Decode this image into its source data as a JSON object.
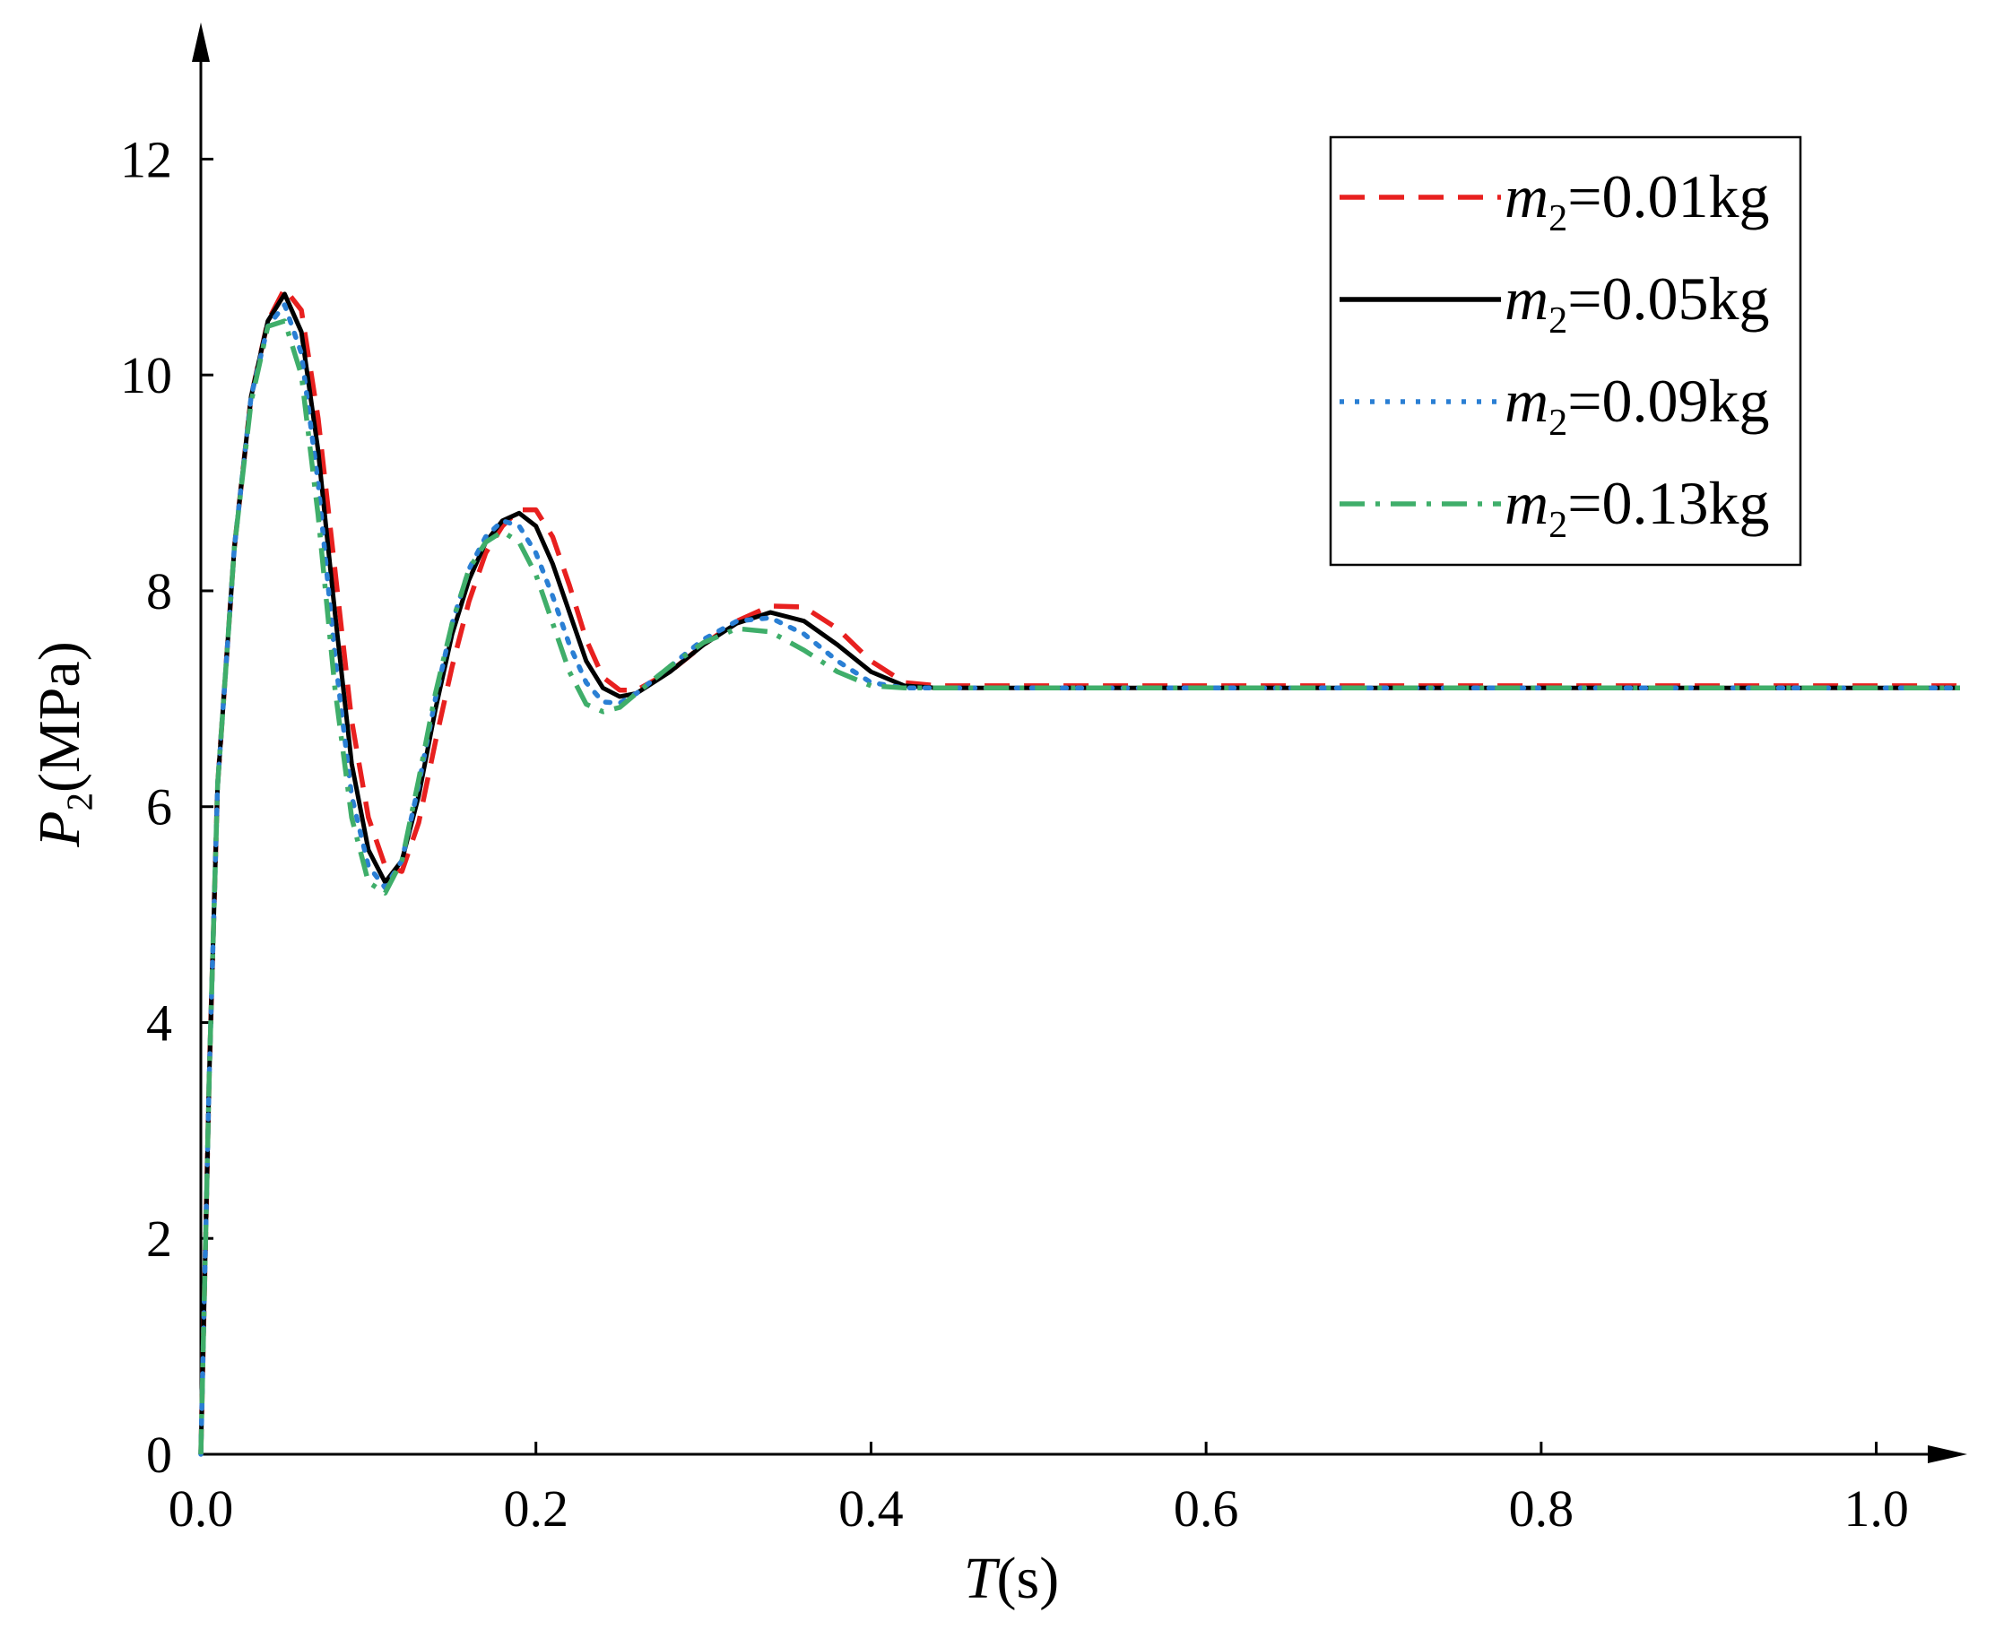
{
  "chart_data": {
    "type": "line",
    "x_label": "T(s)",
    "y_label": "P2(MPa)",
    "x": [
      0,
      0.005,
      0.01,
      0.02,
      0.03,
      0.04,
      0.05,
      0.06,
      0.07,
      0.08,
      0.09,
      0.1,
      0.11,
      0.12,
      0.13,
      0.14,
      0.15,
      0.16,
      0.17,
      0.18,
      0.19,
      0.2,
      0.21,
      0.22,
      0.23,
      0.24,
      0.25,
      0.26,
      0.28,
      0.3,
      0.32,
      0.34,
      0.36,
      0.38,
      0.4,
      0.42,
      0.44,
      0.5,
      0.6,
      0.8,
      1.05
    ],
    "series": [
      {
        "name": "m2=0.01kg",
        "color": "#e8201f",
        "dash": "dashed",
        "values": [
          0,
          3.5,
          6.2,
          8.4,
          9.8,
          10.5,
          10.8,
          10.6,
          9.6,
          8.2,
          6.8,
          5.9,
          5.45,
          5.4,
          5.85,
          6.6,
          7.3,
          7.9,
          8.35,
          8.6,
          8.75,
          8.75,
          8.5,
          8.05,
          7.55,
          7.2,
          7.08,
          7.08,
          7.25,
          7.5,
          7.72,
          7.86,
          7.85,
          7.65,
          7.35,
          7.15,
          7.12,
          7.12,
          7.12,
          7.12,
          7.12
        ]
      },
      {
        "name": "m2=0.05kg",
        "color": "#000000",
        "dash": "solid",
        "values": [
          0,
          3.5,
          6.2,
          8.4,
          9.8,
          10.5,
          10.75,
          10.4,
          9.3,
          7.8,
          6.4,
          5.6,
          5.3,
          5.5,
          6.1,
          6.9,
          7.6,
          8.1,
          8.45,
          8.65,
          8.72,
          8.6,
          8.25,
          7.8,
          7.35,
          7.1,
          7.02,
          7.05,
          7.25,
          7.5,
          7.7,
          7.8,
          7.72,
          7.5,
          7.25,
          7.12,
          7.1,
          7.1,
          7.1,
          7.1,
          7.1
        ]
      },
      {
        "name": "m2=0.09kg",
        "color": "#2a7fd4",
        "dash": "dotted",
        "values": [
          0,
          3.5,
          6.2,
          8.4,
          9.8,
          10.45,
          10.65,
          10.2,
          9.0,
          7.4,
          6.1,
          5.45,
          5.25,
          5.5,
          6.2,
          7.0,
          7.7,
          8.2,
          8.5,
          8.65,
          8.6,
          8.35,
          7.95,
          7.5,
          7.15,
          6.97,
          6.96,
          7.05,
          7.3,
          7.55,
          7.72,
          7.75,
          7.6,
          7.35,
          7.15,
          7.1,
          7.1,
          7.1,
          7.1,
          7.1,
          7.1
        ]
      },
      {
        "name": "m2=0.13kg",
        "color": "#3fae6a",
        "dash": "dashdot",
        "values": [
          0,
          3.5,
          6.2,
          8.4,
          9.75,
          10.45,
          10.5,
          10.0,
          8.7,
          7.1,
          5.9,
          5.3,
          5.2,
          5.5,
          6.25,
          7.05,
          7.7,
          8.2,
          8.45,
          8.55,
          8.45,
          8.15,
          7.7,
          7.25,
          6.95,
          6.88,
          6.92,
          7.05,
          7.3,
          7.52,
          7.65,
          7.62,
          7.45,
          7.25,
          7.12,
          7.1,
          7.1,
          7.1,
          7.1,
          7.1,
          7.1
        ]
      }
    ],
    "xlim": [
      0,
      1.05
    ],
    "ylim": [
      0,
      13.2
    ],
    "xticks": [
      {
        "value": 0,
        "label": "0.0"
      },
      0.2,
      0.4,
      0.6,
      0.8,
      {
        "value": 1,
        "label": "1.0"
      }
    ],
    "yticks": [
      0,
      2,
      4,
      6,
      8,
      10,
      12
    ],
    "legend": "upper right",
    "grid": false
  }
}
